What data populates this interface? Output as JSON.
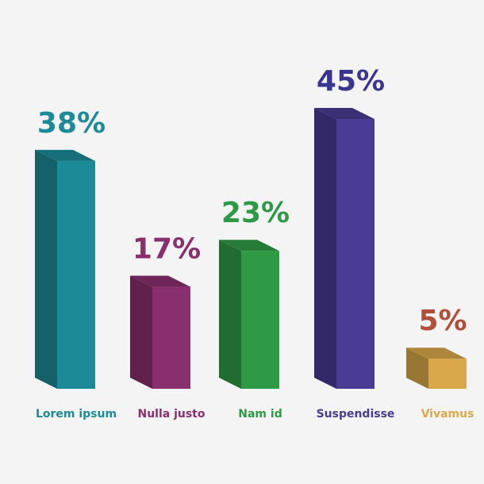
{
  "chart_data": {
    "type": "bar3d",
    "categories": [
      "Lorem ipsum",
      "Nulla justo",
      "Nam id",
      "Suspendisse",
      "Vivamus"
    ],
    "values": [
      38,
      17,
      23,
      45,
      5
    ],
    "value_labels": [
      "38%",
      "17%",
      "23%",
      "45%",
      "5%"
    ],
    "colors": [
      "#1d8b97",
      "#8a2f6e",
      "#2f9a45",
      "#4a3b94",
      "#d9a84a"
    ],
    "label_colors": [
      "#1d8b97",
      "#8a2f6e",
      "#2f9a45",
      "#4a3b94",
      "#d9a84a"
    ],
    "value_label_colors": [
      "#1d8b97",
      "#8a2f6e",
      "#2f9a45",
      "#3a3590",
      "#b0503a"
    ]
  }
}
